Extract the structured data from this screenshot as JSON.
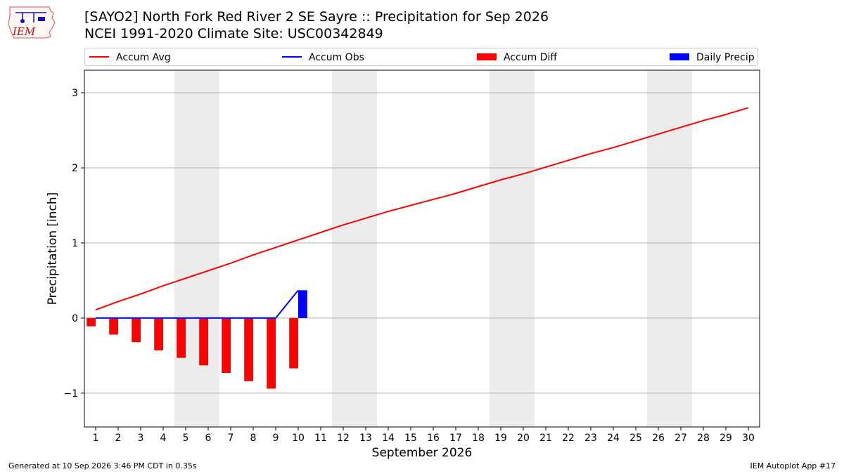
{
  "header": {
    "title_line1": "[SAYO2] North Fork Red River 2 SE Sayre :: Precipitation for Sep 2026",
    "title_line2": "NCEI 1991-2020 Climate Site: USC00342849",
    "logo_text": "IEM"
  },
  "legend": {
    "position": "top",
    "items": [
      {
        "label": "Accum Avg",
        "kind": "line",
        "color": "#ff0000"
      },
      {
        "label": "Accum Obs",
        "kind": "line",
        "color": "#0000ff"
      },
      {
        "label": "Accum Diff",
        "kind": "box",
        "color": "#ff0000"
      },
      {
        "label": "Daily Precip",
        "kind": "box",
        "color": "#0000ff"
      }
    ]
  },
  "footer": {
    "left": "Generated at 10 Sep 2026 3:46 PM CDT in 0.35s",
    "right": "IEM Autoplot App #17"
  },
  "chart_data": {
    "type": "line",
    "xlabel": "September 2026",
    "ylabel": "Precipitation [inch]",
    "x": [
      1,
      2,
      3,
      4,
      5,
      6,
      7,
      8,
      9,
      10,
      11,
      12,
      13,
      14,
      15,
      16,
      17,
      18,
      19,
      20,
      21,
      22,
      23,
      24,
      25,
      26,
      27,
      28,
      29,
      30
    ],
    "xlim": [
      0.5,
      30.5
    ],
    "ylim": [
      -1.45,
      3.3
    ],
    "yticks": [
      -1,
      0,
      1,
      2,
      3
    ],
    "ytick_labels": [
      "−1",
      "0",
      "1",
      "2",
      "3"
    ],
    "grid": "horizontal",
    "weekend_shading": [
      [
        4.5,
        6.5
      ],
      [
        11.5,
        13.5
      ],
      [
        18.5,
        20.5
      ],
      [
        25.5,
        27.5
      ]
    ],
    "series": [
      {
        "name": "Accum Avg",
        "kind": "line",
        "color": "#ff0000",
        "x": [
          1,
          2,
          3,
          4,
          5,
          6,
          7,
          8,
          9,
          10,
          11,
          12,
          13,
          14,
          15,
          16,
          17,
          18,
          19,
          20,
          21,
          22,
          23,
          24,
          25,
          26,
          27,
          28,
          29,
          30
        ],
        "values": [
          0.11,
          0.22,
          0.32,
          0.43,
          0.53,
          0.63,
          0.73,
          0.84,
          0.94,
          1.04,
          1.14,
          1.24,
          1.33,
          1.42,
          1.5,
          1.58,
          1.66,
          1.75,
          1.84,
          1.92,
          2.01,
          2.1,
          2.19,
          2.27,
          2.36,
          2.45,
          2.54,
          2.63,
          2.71,
          2.8
        ]
      },
      {
        "name": "Accum Obs",
        "kind": "line",
        "color": "#0000ff",
        "x": [
          1,
          2,
          3,
          4,
          5,
          6,
          7,
          8,
          9,
          10
        ],
        "values": [
          0,
          0,
          0,
          0,
          0,
          0,
          0,
          0,
          0,
          0.37
        ]
      },
      {
        "name": "Accum Diff",
        "kind": "bar",
        "color": "#ff0000",
        "offset": -0.2,
        "x": [
          1,
          2,
          3,
          4,
          5,
          6,
          7,
          8,
          9,
          10
        ],
        "values": [
          -0.11,
          -0.22,
          -0.32,
          -0.43,
          -0.53,
          -0.63,
          -0.73,
          -0.84,
          -0.94,
          -0.67
        ]
      },
      {
        "name": "Daily Precip",
        "kind": "bar",
        "color": "#0000ff",
        "offset": 0.2,
        "x": [
          10
        ],
        "values": [
          0.37
        ]
      }
    ]
  }
}
